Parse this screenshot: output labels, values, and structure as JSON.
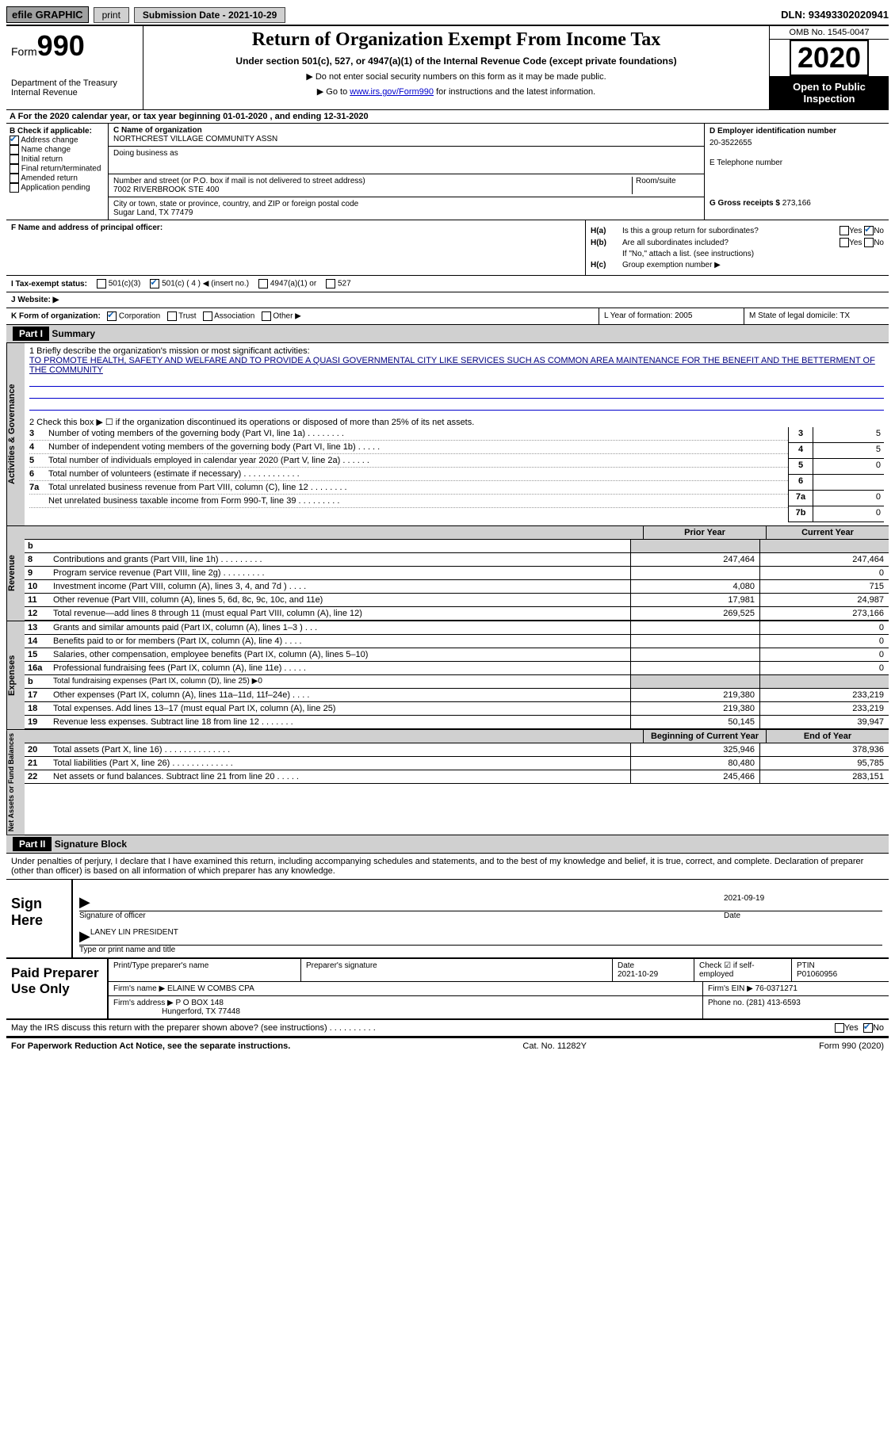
{
  "topbar": {
    "efile": "efile GRAPHIC",
    "print": "print",
    "submission": "Submission Date - 2021-10-29",
    "dln": "DLN: 93493302020941"
  },
  "header": {
    "form_word": "Form",
    "form_num": "990",
    "dept1": "Department of the Treasury",
    "dept2": "Internal Revenue",
    "title": "Return of Organization Exempt From Income Tax",
    "subtitle": "Under section 501(c), 527, or 4947(a)(1) of the Internal Revenue Code (except private foundations)",
    "instr1": "▶ Do not enter social security numbers on this form as it may be made public.",
    "instr2_a": "▶ Go to ",
    "instr2_link": "www.irs.gov/Form990",
    "instr2_b": " for instructions and the latest information.",
    "omb": "OMB No. 1545-0047",
    "year": "2020",
    "open_pub": "Open to Public Inspection"
  },
  "rowA": "A For the 2020 calendar year, or tax year beginning 01-01-2020    , and ending 12-31-2020",
  "colB": {
    "hdr": "B Check if applicable:",
    "addr_change": "Address change",
    "name_change": "Name change",
    "initial": "Initial return",
    "final": "Final return/terminated",
    "amended": "Amended return",
    "app_pending": "Application pending"
  },
  "colC": {
    "name_lbl": "C Name of organization",
    "name": "NORTHCREST VILLAGE COMMUNITY ASSN",
    "dba_lbl": "Doing business as",
    "addr_lbl": "Number and street (or P.O. box if mail is not delivered to street address)",
    "room_lbl": "Room/suite",
    "addr": "7002 RIVERBROOK STE 400",
    "city_lbl": "City or town, state or province, country, and ZIP or foreign postal code",
    "city": "Sugar Land, TX  77479"
  },
  "colD": {
    "ein_lbl": "D Employer identification number",
    "ein": "20-3522655",
    "phone_lbl": "E Telephone number",
    "gross_lbl": "G Gross receipts $",
    "gross": "273,166"
  },
  "sectF": {
    "f_lbl": "F  Name and address of principal officer:",
    "ha_lbl": "H(a)",
    "ha_text": "Is this a group return for subordinates?",
    "hb_lbl": "H(b)",
    "hb_text": "Are all subordinates included?",
    "hb_note": "If \"No,\" attach a list. (see instructions)",
    "hc_lbl": "H(c)",
    "hc_text": "Group exemption number ▶",
    "yes": "Yes",
    "no": "No"
  },
  "taxStatus": {
    "lbl": "I   Tax-exempt status:",
    "o1": "501(c)(3)",
    "o2": "501(c) ( 4 ) ◀ (insert no.)",
    "o3": "4947(a)(1) or",
    "o4": "527"
  },
  "rowJ": {
    "lbl": "J   Website: ▶"
  },
  "rowK": {
    "lbl": "K Form of organization:",
    "o1": "Corporation",
    "o2": "Trust",
    "o3": "Association",
    "o4": "Other ▶",
    "l_lbl": "L Year of formation: 2005",
    "m_lbl": "M State of legal domicile: TX"
  },
  "part1": {
    "hdr": "Part I",
    "title": "Summary"
  },
  "gov": {
    "vlabel": "Activities & Governance",
    "l1": "1   Briefly describe the organization's mission or most significant activities:",
    "mission": "TO PROMOTE HEALTH, SAFETY AND WELFARE AND TO PROVIDE A QUASI GOVERNMENTAL CITY LIKE SERVICES SUCH AS COMMON AREA MAINTENANCE FOR THE BENEFIT AND THE BETTERMENT OF THE COMMUNITY",
    "l2": "2   Check this box ▶ ☐  if the organization discontinued its operations or disposed of more than 25% of its net assets.",
    "rows": [
      {
        "n": "3",
        "t": "Number of voting members of the governing body (Part VI, line 1a)   .    .    .    .    .    .    .    .",
        "k": "3",
        "v": "5"
      },
      {
        "n": "4",
        "t": "Number of independent voting members of the governing body (Part VI, line 1b)   .    .    .    .    .",
        "k": "4",
        "v": "5"
      },
      {
        "n": "5",
        "t": "Total number of individuals employed in calendar year 2020 (Part V, line 2a)   .    .    .    .    .    .",
        "k": "5",
        "v": "0"
      },
      {
        "n": "6",
        "t": "Total number of volunteers (estimate if necessary)    .    .    .    .    .    .    .    .    .    .    .    .",
        "k": "6",
        "v": ""
      },
      {
        "n": "7a",
        "t": "Total unrelated business revenue from Part VIII, column (C), line 12   .    .    .    .    .    .    .    .",
        "k": "7a",
        "v": "0"
      },
      {
        "n": "",
        "t": "Net unrelated business taxable income from Form 990-T, line 39   .    .    .    .    .    .    .    .    .",
        "k": "7b",
        "v": "0"
      }
    ]
  },
  "finHdr": {
    "prior": "Prior Year",
    "current": "Current Year"
  },
  "rev": {
    "vlabel": "Revenue",
    "rows": [
      {
        "n": "b",
        "t": "",
        "c1": "",
        "c2": "",
        "shaded": true
      },
      {
        "n": "8",
        "t": "Contributions and grants (Part VIII, line 1h)   .    .    .    .    .    .    .    .    .",
        "c1": "247,464",
        "c2": "247,464"
      },
      {
        "n": "9",
        "t": "Program service revenue (Part VIII, line 2g)   .    .    .    .    .    .    .    .    .",
        "c1": "",
        "c2": "0"
      },
      {
        "n": "10",
        "t": "Investment income (Part VIII, column (A), lines 3, 4, and 7d )   .    .    .    .",
        "c1": "4,080",
        "c2": "715"
      },
      {
        "n": "11",
        "t": "Other revenue (Part VIII, column (A), lines 5, 6d, 8c, 9c, 10c, and 11e)",
        "c1": "17,981",
        "c2": "24,987"
      },
      {
        "n": "12",
        "t": "Total revenue—add lines 8 through 11 (must equal Part VIII, column (A), line 12)",
        "c1": "269,525",
        "c2": "273,166"
      }
    ]
  },
  "exp": {
    "vlabel": "Expenses",
    "rows": [
      {
        "n": "13",
        "t": "Grants and similar amounts paid (Part IX, column (A), lines 1–3 )   .    .    .",
        "c1": "",
        "c2": "0"
      },
      {
        "n": "14",
        "t": "Benefits paid to or for members (Part IX, column (A), line 4)   .    .    .    .",
        "c1": "",
        "c2": "0"
      },
      {
        "n": "15",
        "t": "Salaries, other compensation, employee benefits (Part IX, column (A), lines 5–10)",
        "c1": "",
        "c2": "0"
      },
      {
        "n": "16a",
        "t": "Professional fundraising fees (Part IX, column (A), line 11e)   .    .    .    .    .",
        "c1": "",
        "c2": "0"
      },
      {
        "n": "b",
        "t": "Total fundraising expenses (Part IX, column (D), line 25) ▶0",
        "c1": "",
        "c2": "",
        "shaded": true,
        "subtle": true
      },
      {
        "n": "17",
        "t": "Other expenses (Part IX, column (A), lines 11a–11d, 11f–24e)   .    .    .    .",
        "c1": "219,380",
        "c2": "233,219"
      },
      {
        "n": "18",
        "t": "Total expenses. Add lines 13–17 (must equal Part IX, column (A), line 25)",
        "c1": "219,380",
        "c2": "233,219"
      },
      {
        "n": "19",
        "t": "Revenue less expenses. Subtract line 18 from line 12   .    .    .    .    .    .    .",
        "c1": "50,145",
        "c2": "39,947"
      }
    ]
  },
  "na": {
    "vlabel": "Net Assets or Fund Balances",
    "hdr1": "Beginning of Current Year",
    "hdr2": "End of Year",
    "rows": [
      {
        "n": "20",
        "t": "Total assets (Part X, line 16)   .    .    .    .    .    .    .    .    .    .    .    .    .    .",
        "c1": "325,946",
        "c2": "378,936"
      },
      {
        "n": "21",
        "t": "Total liabilities (Part X, line 26)   .    .    .    .    .    .    .    .    .    .    .    .    .",
        "c1": "80,480",
        "c2": "95,785"
      },
      {
        "n": "22",
        "t": "Net assets or fund balances. Subtract line 21 from line 20   .    .    .    .    .",
        "c1": "245,466",
        "c2": "283,151"
      }
    ]
  },
  "part2": {
    "hdr": "Part II",
    "title": "Signature Block"
  },
  "sigText": "Under penalties of perjury, I declare that I have examined this return, including accompanying schedules and statements, and to the best of my knowledge and belief, it is true, correct, and complete. Declaration of preparer (other than officer) is based on all information of which preparer has any knowledge.",
  "sign": {
    "lbl": "Sign Here",
    "sig_officer": "Signature of officer",
    "date_lbl": "Date",
    "date": "2021-09-19",
    "name": "LANEY LIN  PRESIDENT",
    "type_lbl": "Type or print name and title"
  },
  "paid": {
    "lbl": "Paid Preparer Use Only",
    "h1": "Print/Type preparer's name",
    "h2": "Preparer's signature",
    "h3": "Date",
    "h3v": "2021-10-29",
    "h4": "Check ☑ if self-employed",
    "h5": "PTIN",
    "h5v": "P01060956",
    "firm_name_lbl": "Firm's name    ▶",
    "firm_name": "ELAINE W COMBS CPA",
    "ein_lbl": "Firm's EIN ▶",
    "ein": "76-0371271",
    "addr_lbl": "Firm's address ▶",
    "addr1": "P O BOX 148",
    "addr2": "Hungerford, TX  77448",
    "phone_lbl": "Phone no.",
    "phone": "(281) 413-6593"
  },
  "discuss": {
    "text": "May the IRS discuss this return with the preparer shown above? (see instructions)    .    .    .    .    .    .    .    .    .    .",
    "yes": "Yes",
    "no": "No"
  },
  "footer": {
    "left": "For Paperwork Reduction Act Notice, see the separate instructions.",
    "mid": "Cat. No. 11282Y",
    "right": "Form 990 (2020)"
  }
}
